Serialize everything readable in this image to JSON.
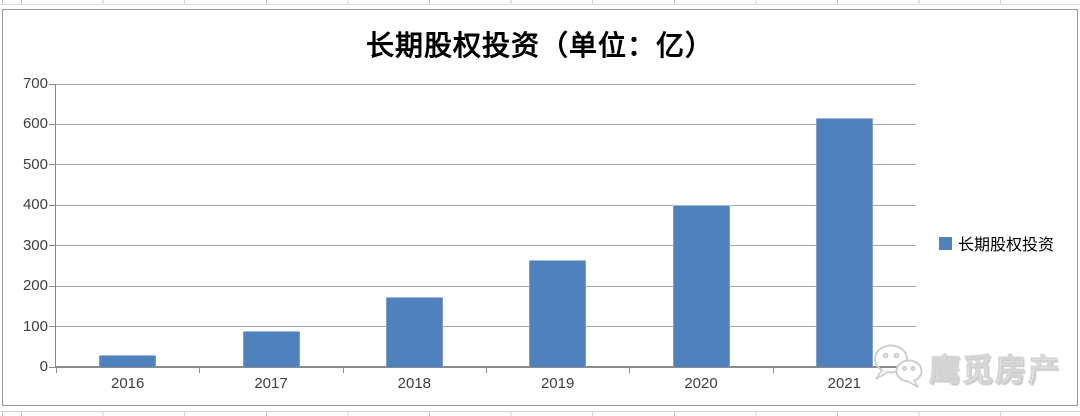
{
  "chart_data": {
    "type": "bar",
    "title": "长期股权投资（单位：亿）",
    "categories": [
      "2016",
      "2017",
      "2018",
      "2019",
      "2020",
      "2021"
    ],
    "series": [
      {
        "name": "长期股权投资",
        "values": [
          30,
          88,
          172,
          265,
          400,
          615
        ]
      }
    ],
    "xlabel": "",
    "ylabel": "",
    "ylim": [
      0,
      700
    ],
    "yticks": [
      0,
      100,
      200,
      300,
      400,
      500,
      600,
      700
    ],
    "grid": true,
    "legend_position": "right",
    "bar_color": "#4F81BD"
  },
  "legend": {
    "label": "长期股权投资",
    "swatch_color": "#4F81BD"
  },
  "watermark": {
    "text": "鹰觅房产",
    "icon": "wechat-logo-icon"
  },
  "colors": {
    "bar": "#4F81BD",
    "gridline": "#a6a6a6",
    "axis": "#8a8a8a",
    "chart_border": "#979797",
    "tick_label": "#3d3d3d",
    "excel_gridline": "#cfcfcf",
    "watermark": "#d4d4d4"
  }
}
